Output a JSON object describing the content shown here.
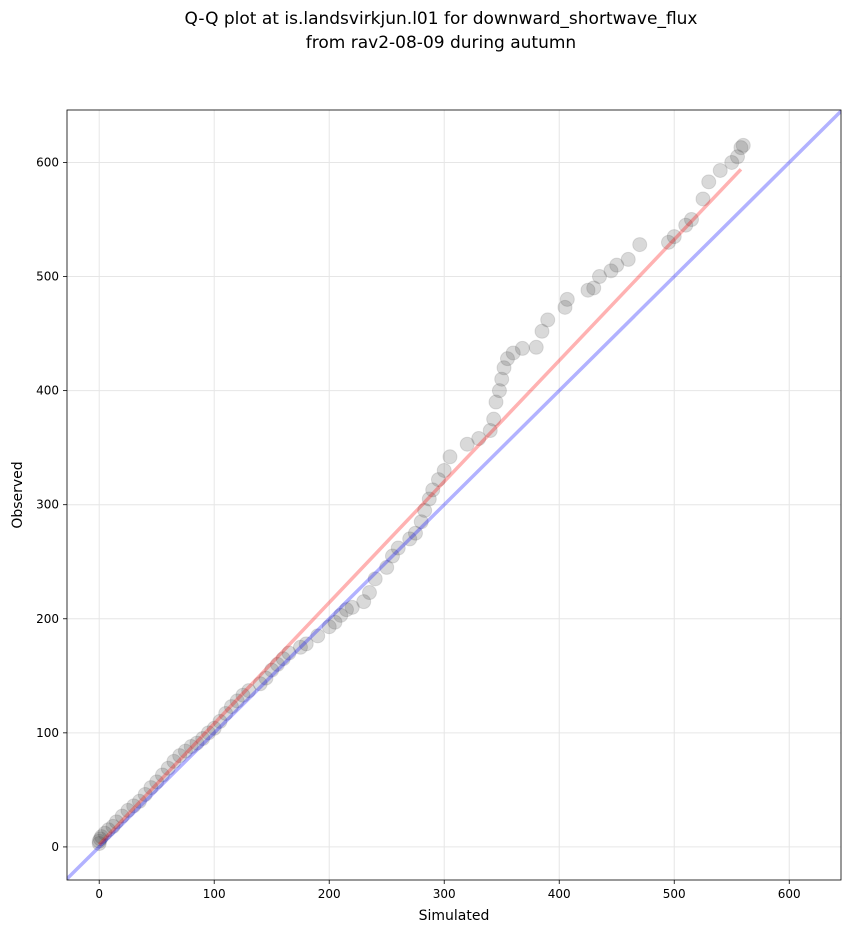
{
  "chart_data": {
    "type": "scatter",
    "title": [
      "Q-Q plot at is.landsvirkjun.l01 for downward_shortwave_flux",
      "from rav2-08-09 during autumn"
    ],
    "x_label": "Simulated",
    "y_label": "Observed",
    "xlim": [
      -28,
      645
    ],
    "ylim": [
      -29,
      646
    ],
    "xticks": [
      0,
      100,
      200,
      300,
      400,
      500,
      600
    ],
    "yticks": [
      0,
      100,
      200,
      300,
      400,
      500,
      600
    ],
    "grid": true,
    "points": {
      "color": "#404040",
      "x": [
        0,
        0,
        1,
        2,
        5,
        8,
        12,
        15,
        20,
        25,
        30,
        35,
        40,
        45,
        50,
        55,
        60,
        65,
        70,
        75,
        80,
        85,
        90,
        95,
        100,
        105,
        110,
        115,
        120,
        125,
        130,
        140,
        145,
        150,
        155,
        160,
        165,
        175,
        180,
        190,
        200,
        205,
        210,
        215,
        220,
        230,
        235,
        240,
        250,
        255,
        260,
        270,
        275,
        280,
        283,
        287,
        290,
        295,
        300,
        305,
        320,
        330,
        340,
        343,
        345,
        348,
        350,
        352,
        355,
        360,
        368,
        380,
        385,
        390,
        405,
        407,
        425,
        430,
        435,
        445,
        450,
        460,
        470,
        495,
        500,
        510,
        515,
        525,
        530,
        540,
        550,
        555,
        558,
        560
      ],
      "y": [
        3,
        5,
        7,
        9,
        12,
        15,
        18,
        22,
        27,
        32,
        36,
        40,
        46,
        52,
        57,
        63,
        69,
        75,
        80,
        84,
        88,
        91,
        95,
        100,
        104,
        110,
        117,
        123,
        128,
        133,
        137,
        143,
        148,
        155,
        160,
        165,
        170,
        175,
        178,
        185,
        193,
        197,
        203,
        208,
        210,
        215,
        223,
        235,
        245,
        255,
        262,
        270,
        275,
        285,
        295,
        305,
        313,
        322,
        330,
        342,
        353,
        358,
        365,
        375,
        390,
        400,
        410,
        420,
        428,
        433,
        437,
        438,
        452,
        462,
        473,
        480,
        488,
        490,
        500,
        505,
        510,
        515,
        528,
        530,
        535,
        545,
        550,
        568,
        583,
        593,
        600,
        605,
        613,
        615
      ]
    },
    "lines": [
      {
        "color": "#0000ff",
        "x": [
          -28,
          645
        ],
        "y": [
          -28,
          645
        ]
      },
      {
        "color": "#ff0000",
        "x": [
          0,
          558
        ],
        "y": [
          2,
          594
        ]
      }
    ]
  }
}
